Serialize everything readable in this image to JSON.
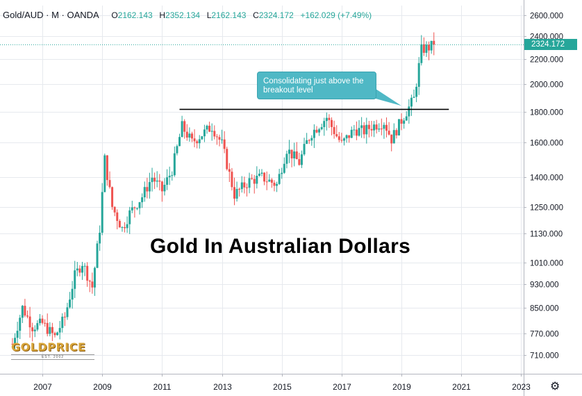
{
  "header": {
    "symbol": "Gold/AUD · M · OANDA",
    "open": {
      "k": "O",
      "v": "2162.143"
    },
    "high": {
      "k": "H",
      "v": "2352.134"
    },
    "low": {
      "k": "L",
      "v": "2162.143"
    },
    "close": {
      "k": "C",
      "v": "2324.172"
    },
    "change": "+162.029 (+7.49%)"
  },
  "title": "Gold In Australian Dollars",
  "annotation": "Consolidating just above the breakout level",
  "last_price_label": "2324.172",
  "logo": {
    "name": "GOLDPRICE",
    "est": "EST. 2002"
  },
  "settings_icon": "gear-icon",
  "colors": {
    "up": "#26a69a",
    "down": "#ef5350",
    "callout": "#4fb8c5",
    "grid": "#e6e9ee",
    "line": "#000000"
  },
  "chart_data": {
    "type": "candlestick",
    "interval": "monthly",
    "scale": "log",
    "ylim": [
      660,
      2700
    ],
    "y_ticks": [
      "2600.000",
      "2400.000",
      "2200.000",
      "2000.000",
      "1800.000",
      "1600.000",
      "1400.000",
      "1250.000",
      "1130.000",
      "1010.000",
      "930.000",
      "850.000",
      "770.000",
      "710.000"
    ],
    "x_ticks": [
      "2007",
      "2009",
      "2011",
      "2013",
      "2015",
      "2017",
      "2019",
      "2021",
      "2023"
    ],
    "xlim": [
      "2005-08",
      "2023-02"
    ],
    "grid": true,
    "resistance_line": {
      "value": 1815,
      "from": "2011-08",
      "to": "2020-08"
    },
    "last_price": 2324.172,
    "close_path": [
      [
        "2006-01",
        740
      ],
      [
        "2006-05",
        850
      ],
      [
        "2006-09",
        790
      ],
      [
        "2007-01",
        800
      ],
      [
        "2007-06",
        760
      ],
      [
        "2007-10",
        820
      ],
      [
        "2008-02",
        960
      ],
      [
        "2008-05",
        1010
      ],
      [
        "2008-09",
        920
      ],
      [
        "2008-12",
        1150
      ],
      [
        "2009-02",
        1500
      ],
      [
        "2009-05",
        1250
      ],
      [
        "2009-09",
        1150
      ],
      [
        "2009-12",
        1220
      ],
      [
        "2010-05",
        1300
      ],
      [
        "2010-09",
        1400
      ],
      [
        "2011-01",
        1330
      ],
      [
        "2011-05",
        1440
      ],
      [
        "2011-09",
        1700
      ],
      [
        "2012-01",
        1600
      ],
      [
        "2012-05",
        1650
      ],
      [
        "2012-09",
        1700
      ],
      [
        "2013-01",
        1590
      ],
      [
        "2013-06",
        1310
      ],
      [
        "2013-12",
        1380
      ],
      [
        "2014-05",
        1400
      ],
      [
        "2014-11",
        1360
      ],
      [
        "2015-03",
        1560
      ],
      [
        "2015-08",
        1480
      ],
      [
        "2015-11",
        1600
      ],
      [
        "2016-01",
        1660
      ],
      [
        "2016-07",
        1760
      ],
      [
        "2016-11",
        1640
      ],
      [
        "2017-01",
        1590
      ],
      [
        "2017-06",
        1680
      ],
      [
        "2017-10",
        1670
      ],
      [
        "2018-01",
        1700
      ],
      [
        "2018-06",
        1730
      ],
      [
        "2018-09",
        1620
      ],
      [
        "2018-12",
        1710
      ],
      [
        "2019-03",
        1800
      ],
      [
        "2019-06",
        1890
      ],
      [
        "2019-09",
        2280
      ],
      [
        "2019-12",
        2300
      ],
      [
        "2020-02",
        2324.172
      ]
    ]
  }
}
